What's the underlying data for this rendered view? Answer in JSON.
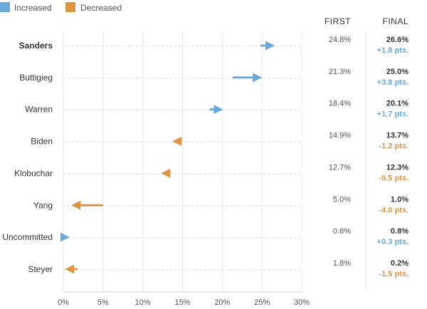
{
  "legend": [
    {
      "label": "Increased",
      "color": "#6aaadb"
    },
    {
      "label": "Decreased",
      "color": "#dc9545"
    }
  ],
  "columns": {
    "first": "FIRST",
    "final": "FINAL"
  },
  "chart_data": {
    "type": "arrow",
    "xlim": [
      0,
      30
    ],
    "xticks": [
      0,
      5,
      10,
      15,
      20,
      25,
      30
    ],
    "xtick_labels": [
      "0%",
      "5%",
      "10%",
      "15%",
      "20%",
      "25%",
      "30%"
    ],
    "grid": "vertical",
    "rows": [
      {
        "name": "Sanders",
        "bold": true,
        "first": 24.8,
        "final": 26.6,
        "first_label": "24.8%",
        "final_label": "26.6%",
        "change_label": "+1.8 pts."
      },
      {
        "name": "Buttigieg",
        "bold": false,
        "first": 21.3,
        "final": 25.0,
        "first_label": "21.3%",
        "final_label": "25.0%",
        "change_label": "+3.8 pts."
      },
      {
        "name": "Warren",
        "bold": false,
        "first": 18.4,
        "final": 20.1,
        "first_label": "18.4%",
        "final_label": "20.1%",
        "change_label": "+1.7 pts."
      },
      {
        "name": "Biden",
        "bold": false,
        "first": 14.9,
        "final": 13.7,
        "first_label": "14.9%",
        "final_label": "13.7%",
        "change_label": "-1.2 pts."
      },
      {
        "name": "Klobuchar",
        "bold": false,
        "first": 12.7,
        "final": 12.3,
        "first_label": "12.7%",
        "final_label": "12.3%",
        "change_label": "-0.5 pts."
      },
      {
        "name": "Yang",
        "bold": false,
        "first": 5.0,
        "final": 1.0,
        "first_label": "5.0%",
        "final_label": "1.0%",
        "change_label": "-4.0 pts."
      },
      {
        "name": "Uncommitted",
        "bold": false,
        "first": 0.6,
        "final": 0.8,
        "first_label": "0.6%",
        "final_label": "0.8%",
        "change_label": "+0.3 pts."
      },
      {
        "name": "Steyer",
        "bold": false,
        "first": 1.8,
        "final": 0.2,
        "first_label": "1.8%",
        "final_label": "0.2%",
        "change_label": "-1.5 pts."
      }
    ]
  }
}
